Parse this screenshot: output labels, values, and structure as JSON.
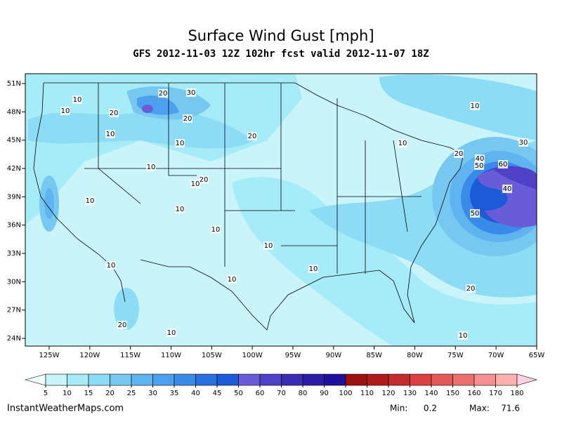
{
  "title": "Surface Wind Gust [mph]",
  "subtitle": "GFS 2012-11-03 12Z 102hr fcst valid 2012-11-07 18Z",
  "lat_labels": [
    "51N",
    "48N",
    "45N",
    "42N",
    "39N",
    "36N",
    "33N",
    "30N",
    "27N",
    "24N"
  ],
  "lon_labels": [
    "125W",
    "120W",
    "115W",
    "110W",
    "105W",
    "100W",
    "95W",
    "90W",
    "85W",
    "80W",
    "75W",
    "70W",
    "65W"
  ],
  "contour_labels": [
    10,
    20,
    30,
    10,
    20,
    20,
    10,
    10,
    20,
    10,
    20,
    10,
    10,
    10,
    10,
    10,
    10,
    10,
    10,
    20,
    10,
    10,
    10,
    20,
    30,
    40,
    50,
    60,
    40,
    50,
    20,
    10
  ],
  "colorbar": {
    "levels": [
      5,
      10,
      15,
      20,
      25,
      30,
      35,
      40,
      45,
      50,
      60,
      70,
      80,
      90,
      100,
      110,
      120,
      130,
      140,
      150,
      160,
      170,
      180
    ],
    "colors": [
      "#f0ffff",
      "#c8f4fa",
      "#a5ecf8",
      "#8cdcf5",
      "#77c8f0",
      "#5fb4ef",
      "#4da0ee",
      "#3a8ae8",
      "#2a70e0",
      "#1c5ad8",
      "#6a5cd8",
      "#5040c8",
      "#3c2cb4",
      "#2c1ca8",
      "#20109c",
      "#9c1010",
      "#b01c1c",
      "#c42c2c",
      "#dc4040",
      "#e45858",
      "#ec7070",
      "#f49090",
      "#fcb0b0",
      "#ffd0e0"
    ]
  },
  "footer": {
    "site": "InstantWeatherMaps.com",
    "stats": [
      {
        "label": "Min:",
        "value": 0.2
      },
      {
        "label": "Max:",
        "value": 71.6
      }
    ]
  }
}
